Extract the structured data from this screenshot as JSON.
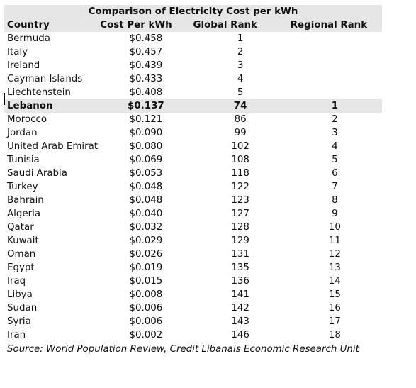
{
  "table": {
    "title": "Comparison of Electricity Cost per kWh",
    "headers": [
      "Country",
      "Cost Per kWh",
      "Global Rank",
      "Regional Rank"
    ],
    "rows": [
      {
        "country": "Bermuda",
        "cost": "$0.458",
        "global": "1",
        "regional": ""
      },
      {
        "country": "Italy",
        "cost": "$0.457",
        "global": "2",
        "regional": ""
      },
      {
        "country": "Ireland",
        "cost": "$0.439",
        "global": "3",
        "regional": ""
      },
      {
        "country": "Cayman Islands",
        "cost": "$0.433",
        "global": "4",
        "regional": ""
      },
      {
        "country": "Liechtenstein",
        "cost": "$0.408",
        "global": "5",
        "regional": ""
      },
      {
        "country": "Lebanon",
        "cost": "$0.137",
        "global": "74",
        "regional": "1"
      },
      {
        "country": "Morocco",
        "cost": "$0.121",
        "global": "86",
        "regional": "2"
      },
      {
        "country": "Jordan",
        "cost": "$0.090",
        "global": "99",
        "regional": "3"
      },
      {
        "country": "United Arab Emirates",
        "cost": "$0.080",
        "global": "102",
        "regional": "4"
      },
      {
        "country": "Tunisia",
        "cost": "$0.069",
        "global": "108",
        "regional": "5"
      },
      {
        "country": "Saudi Arabia",
        "cost": "$0.053",
        "global": "118",
        "regional": "6"
      },
      {
        "country": "Turkey",
        "cost": "$0.048",
        "global": "122",
        "regional": "7"
      },
      {
        "country": "Bahrain",
        "cost": "$0.048",
        "global": "123",
        "regional": "8"
      },
      {
        "country": "Algeria",
        "cost": "$0.040",
        "global": "127",
        "regional": "9"
      },
      {
        "country": "Qatar",
        "cost": "$0.032",
        "global": "128",
        "regional": "10"
      },
      {
        "country": "Kuwait",
        "cost": "$0.029",
        "global": "129",
        "regional": "11"
      },
      {
        "country": "Oman",
        "cost": "$0.026",
        "global": "131",
        "regional": "12"
      },
      {
        "country": "Egypt",
        "cost": "$0.019",
        "global": "135",
        "regional": "13"
      },
      {
        "country": "Iraq",
        "cost": "$0.015",
        "global": "136",
        "regional": "14"
      },
      {
        "country": "Libya",
        "cost": "$0.008",
        "global": "141",
        "regional": "15"
      },
      {
        "country": "Sudan",
        "cost": "$0.006",
        "global": "142",
        "regional": "16"
      },
      {
        "country": "Syria",
        "cost": "$0.006",
        "global": "143",
        "regional": "17"
      },
      {
        "country": "Iran",
        "cost": "$0.002",
        "global": "146",
        "regional": "18"
      }
    ],
    "highlight_country": "Lebanon",
    "source": "Source: World Population Review, Credit Libanais Economic Research Unit"
  },
  "colors": {
    "header_background": "#e6e6e6",
    "highlight_background": "#e6e6e6"
  }
}
